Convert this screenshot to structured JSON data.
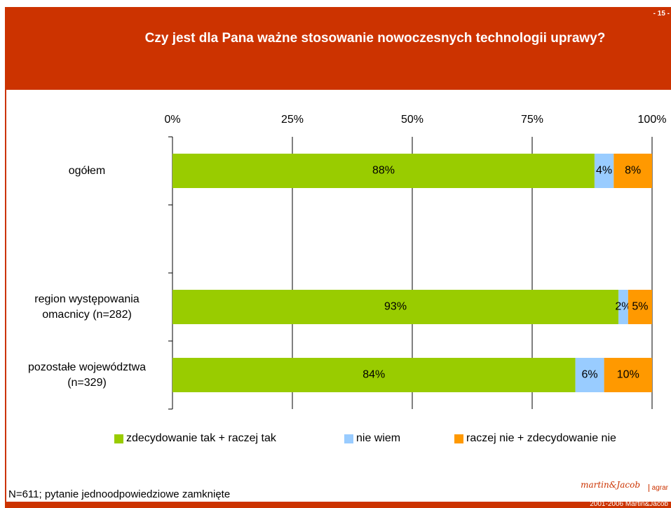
{
  "slide_number": "- 15 -",
  "copyright": "2001-2006 Martin&Jacob",
  "logo": "martin&Jacob",
  "logo_suffix": "agrar",
  "chart_data": {
    "type": "stacked_barh",
    "title": "Czy jest dla Pana ważne stosowanie nowoczesnych technologii uprawy?",
    "footnote": "N=611; pytanie jednoodpowiedziowe zamknięte",
    "categories": [
      "ogółem",
      null,
      "region występowania\nomacnicy (n=282)",
      "pozostałe województwa\n(n=329)"
    ],
    "series": [
      {
        "name": "zdecydowanie tak + raczej tak",
        "color": "#99cc00",
        "values": [
          88,
          null,
          93,
          84
        ],
        "value_labels": [
          "88%",
          null,
          "93%",
          "84%"
        ]
      },
      {
        "name": "nie wiem",
        "color": "#99ccff",
        "values": [
          4,
          null,
          2,
          6
        ],
        "value_labels": [
          "4%",
          null,
          "2%",
          "6%"
        ]
      },
      {
        "name": "raczej nie + zdecydowanie nie",
        "color": "#ff9900",
        "values": [
          8,
          null,
          5,
          10
        ],
        "value_labels": [
          "8%",
          null,
          "5%",
          "10%"
        ]
      }
    ],
    "xlim": [
      0,
      100
    ],
    "xticks": [
      {
        "value": 0,
        "label": "0%"
      },
      {
        "value": 25,
        "label": "25%"
      },
      {
        "value": 50,
        "label": "50%"
      },
      {
        "value": 75,
        "label": "75%"
      },
      {
        "value": 100,
        "label": "100%"
      }
    ],
    "grid": true,
    "legend": "bottom"
  }
}
